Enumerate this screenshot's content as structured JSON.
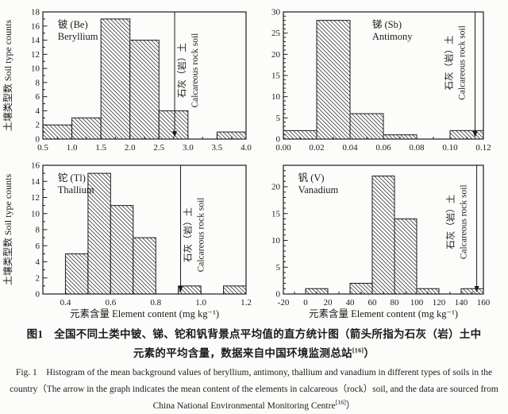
{
  "figure": {
    "arrow_label_cn": "石灰（岩）土",
    "arrow_label_en": "Calcareous rock soil",
    "y_axis_title": "土壤类型数 Soil type counts",
    "x_axis_title": "元素含量 Element content (mg kg⁻¹)",
    "colors": {
      "ink": "#1a1a1a",
      "hatch": "#3f3f3f",
      "bar_fill": "#ffffff",
      "background": "#fcfcfb"
    }
  },
  "chart_data": [
    {
      "type": "bar",
      "element_cn": "铍 (Be)",
      "element_en": "Beryllium",
      "xlim": [
        0.5,
        4.0
      ],
      "xtick_start": 0.5,
      "xtick_step": 0.5,
      "x_decimals": 1,
      "x_minor_step": 0.25,
      "ylim": [
        0,
        18
      ],
      "ytick_step": 2,
      "y_minor_step": 1,
      "bin_start": 0.5,
      "bin_width": 0.5,
      "counts": [
        2,
        3,
        17,
        14,
        4,
        0,
        1
      ],
      "arrow_x": 2.77,
      "arrow_side": "right",
      "arrow_fy": 0.46,
      "label_fx": 0.05
    },
    {
      "type": "bar",
      "element_cn": "锑 (Sb)",
      "element_en": "Antimony",
      "xlim": [
        0.0,
        0.12
      ],
      "xtick_start": 0.0,
      "xtick_step": 0.02,
      "x_decimals": 2,
      "x_minor_step": 0.01,
      "ylim": [
        0,
        30
      ],
      "ytick_step": 5,
      "y_minor_step": 1,
      "bin_start": 0.0,
      "bin_width": 0.02,
      "counts": [
        2,
        28,
        6,
        1,
        0,
        2
      ],
      "arrow_x": 0.115,
      "arrow_side": "left",
      "arrow_fy": 0.4,
      "label_fx": 0.42
    },
    {
      "type": "bar",
      "element_cn": "铊 (Tl)",
      "element_en": "Thallium",
      "xlim": [
        0.3,
        1.2
      ],
      "xtick_start": 0.4,
      "xtick_step": 0.2,
      "x_decimals": 1,
      "x_minor_step": 0.1,
      "ylim": [
        0,
        16
      ],
      "ytick_step": 2,
      "y_minor_step": 1,
      "bin_start": 0.4,
      "bin_width": 0.1,
      "counts": [
        5,
        15,
        11,
        7,
        0,
        1,
        0,
        1
      ],
      "arrow_x": 0.91,
      "arrow_side": "right",
      "arrow_fy": 0.54,
      "label_fx": 0.05
    },
    {
      "type": "bar",
      "element_cn": "钒 (V)",
      "element_en": "Vanadium",
      "xlim": [
        -20,
        160
      ],
      "xtick_start": -20,
      "xtick_step": 20,
      "x_decimals": 0,
      "x_minor_step": 10,
      "ylim": [
        0,
        24
      ],
      "ytick_step": 5,
      "y_minor_step": 1,
      "bin_start": 0,
      "bin_width": 20,
      "counts": [
        1,
        0,
        2,
        22,
        14,
        1,
        0,
        1
      ],
      "arrow_x": 154,
      "arrow_side": "left",
      "arrow_fy": 0.44,
      "label_fx": 0.05
    }
  ],
  "caption": {
    "cn_text": "图1　全国不同土类中铍、锑、铊和钒背景点平均值的直方统计图（箭头所指为石灰（岩）土中元素的平均含量，数据来自中国环境监测总站",
    "cn_ref": "[16]",
    "cn_close": "）",
    "en_text": "Fig. 1　Histogram of the mean background values of beryllium, antimony, thallium and vanadium in different types of soils in the country（The arrow in the graph indicates the mean content of the elements in calcareous（rock）soil, and the data are sourced from China National Environmental Monitoring Centre",
    "en_ref": "[16]",
    "en_close": "）"
  }
}
